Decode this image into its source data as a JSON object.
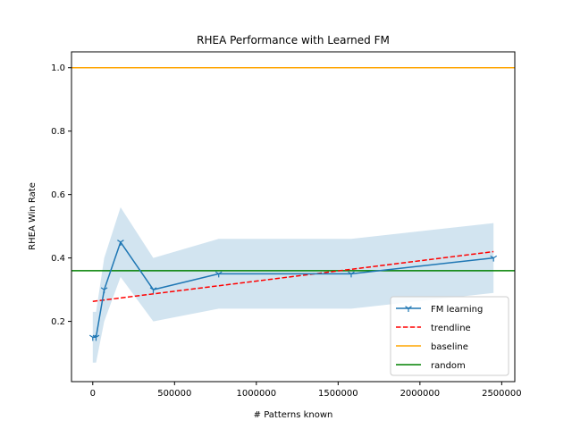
{
  "chart_data": {
    "type": "line",
    "title": "RHEA Performance with Learned FM",
    "xlabel": "# Patterns known",
    "ylabel": "RHEA Win Rate",
    "xlim": [
      -130000,
      2580000
    ],
    "ylim": [
      0.01,
      1.05
    ],
    "x_ticks": [
      0,
      500000,
      1000000,
      1500000,
      2000000,
      2500000
    ],
    "x_tick_labels": [
      "0",
      "500000",
      "1000000",
      "1500000",
      "2000000",
      "2500000"
    ],
    "y_ticks": [
      0.2,
      0.4,
      0.6,
      0.8,
      1.0
    ],
    "y_tick_labels": [
      "0.2",
      "0.4",
      "0.6",
      "0.8",
      "1.0"
    ],
    "grid": false,
    "legend_position": "bottom-right",
    "series": [
      {
        "name": "FM learning",
        "kind": "line-with-markers",
        "color": "#1f77b4",
        "x": [
          0,
          20000,
          70000,
          170000,
          370000,
          770000,
          1580000,
          2450000
        ],
        "y": [
          0.15,
          0.15,
          0.3,
          0.45,
          0.3,
          0.35,
          0.35,
          0.4
        ],
        "band_low": [
          0.07,
          0.07,
          0.2,
          0.34,
          0.2,
          0.24,
          0.24,
          0.29
        ],
        "band_high": [
          0.23,
          0.23,
          0.4,
          0.56,
          0.4,
          0.46,
          0.46,
          0.51
        ]
      },
      {
        "name": "trendline",
        "kind": "dashed-line",
        "color": "#ff0000",
        "x": [
          0,
          2450000
        ],
        "y": [
          0.263,
          0.42
        ]
      },
      {
        "name": "baseline",
        "kind": "hline",
        "color": "#ffa500",
        "y": 1.0
      },
      {
        "name": "random",
        "kind": "hline",
        "color": "#008000",
        "y": 0.36
      }
    ]
  }
}
